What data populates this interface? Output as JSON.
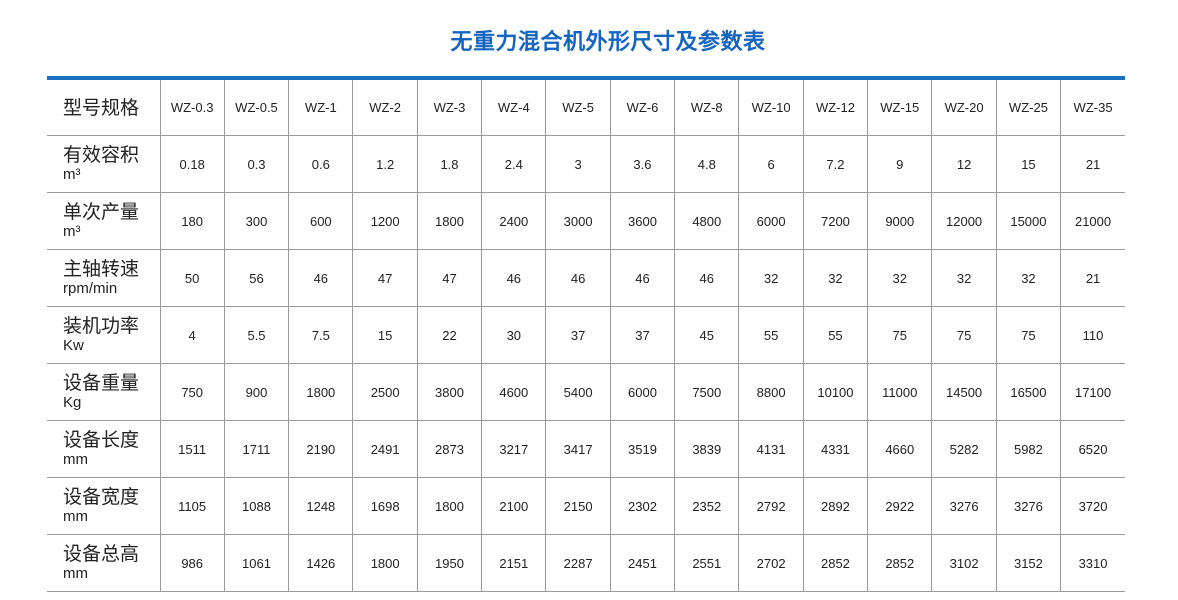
{
  "title": "无重力混合机外形尺寸及参数表",
  "accent_color": "#1565c0",
  "table": {
    "header_label": "型号规格",
    "models": [
      "WZ-0.3",
      "WZ-0.5",
      "WZ-1",
      "WZ-2",
      "WZ-3",
      "WZ-4",
      "WZ-5",
      "WZ-6",
      "WZ-8",
      "WZ-10",
      "WZ-12",
      "WZ-15",
      "WZ-20",
      "WZ-25",
      "WZ-35"
    ],
    "rows": [
      {
        "label": "有效容积",
        "unit": "m³",
        "values": [
          "0.18",
          "0.3",
          "0.6",
          "1.2",
          "1.8",
          "2.4",
          "3",
          "3.6",
          "4.8",
          "6",
          "7.2",
          "9",
          "12",
          "15",
          "21"
        ]
      },
      {
        "label": "单次产量",
        "unit": "m³",
        "values": [
          "180",
          "300",
          "600",
          "1200",
          "1800",
          "2400",
          "3000",
          "3600",
          "4800",
          "6000",
          "7200",
          "9000",
          "12000",
          "15000",
          "21000"
        ]
      },
      {
        "label": "主轴转速",
        "unit": "rpm/min",
        "values": [
          "50",
          "56",
          "46",
          "47",
          "47",
          "46",
          "46",
          "46",
          "46",
          "32",
          "32",
          "32",
          "32",
          "32",
          "21"
        ]
      },
      {
        "label": "装机功率",
        "unit": "Kw",
        "values": [
          "4",
          "5.5",
          "7.5",
          "15",
          "22",
          "30",
          "37",
          "37",
          "45",
          "55",
          "55",
          "75",
          "75",
          "75",
          "110"
        ]
      },
      {
        "label": "设备重量",
        "unit": "Kg",
        "values": [
          "750",
          "900",
          "1800",
          "2500",
          "3800",
          "4600",
          "5400",
          "6000",
          "7500",
          "8800",
          "10100",
          "11000",
          "14500",
          "16500",
          "17100"
        ]
      },
      {
        "label": "设备长度",
        "unit": "mm",
        "values": [
          "1511",
          "1711",
          "2190",
          "2491",
          "2873",
          "3217",
          "3417",
          "3519",
          "3839",
          "4131",
          "4331",
          "4660",
          "5282",
          "5982",
          "6520"
        ]
      },
      {
        "label": "设备宽度",
        "unit": "mm",
        "values": [
          "1105",
          "1088",
          "1248",
          "1698",
          "1800",
          "2100",
          "2150",
          "2302",
          "2352",
          "2792",
          "2892",
          "2922",
          "3276",
          "3276",
          "3720"
        ]
      },
      {
        "label": "设备总高",
        "unit": "mm",
        "values": [
          "986",
          "1061",
          "1426",
          "1800",
          "1950",
          "2151",
          "2287",
          "2451",
          "2551",
          "2702",
          "2852",
          "2852",
          "3102",
          "3152",
          "3310"
        ]
      }
    ]
  }
}
